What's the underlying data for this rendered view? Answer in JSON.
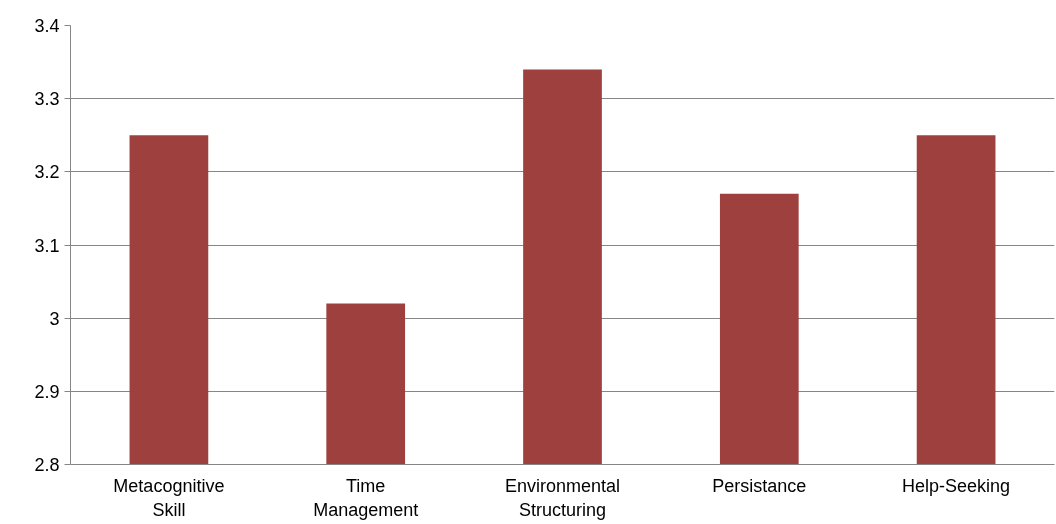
{
  "chart_data": {
    "type": "bar",
    "categories": [
      "Metacognitive Skill",
      "Time Management",
      "Environmental Structuring",
      "Persistance",
      "Help-Seeking"
    ],
    "values": [
      3.25,
      3.02,
      3.34,
      3.17,
      3.25
    ],
    "color": "#9e413e",
    "ylim": [
      2.8,
      3.4
    ],
    "yticks": [
      2.8,
      2.9,
      {
        "value": 3.0,
        "label": "3"
      },
      3.1,
      3.2,
      3.3,
      3.4
    ],
    "grid": "y"
  }
}
